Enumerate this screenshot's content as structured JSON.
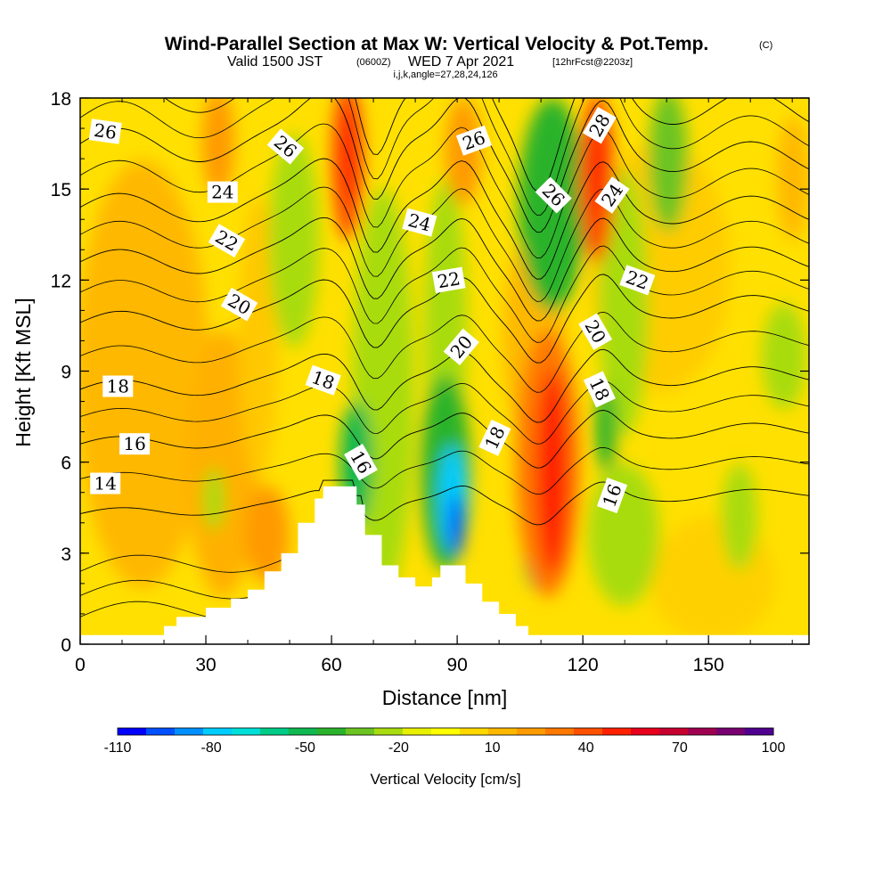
{
  "title": {
    "main": "Wind-Parallel Section at Max W: Vertical Velocity & Pot.Temp.",
    "main_mark": "(C)",
    "valid_prefix": "Valid 1500 JST",
    "valid_utc": "(0600Z)",
    "valid_date": "WED 7 Apr 2021",
    "forecast": "[12hrFcst@2203z]",
    "indices": "i,j,k,angle=27,28,24,126"
  },
  "chart_data": {
    "type": "heatmap",
    "xlabel": "Distance [nm]",
    "ylabel": "Height [Kft MSL]",
    "xlim": [
      0,
      174
    ],
    "ylim": [
      0,
      18
    ],
    "x_ticks": [
      "0",
      "30",
      "60",
      "90",
      "120",
      "150"
    ],
    "x_tick_values": [
      0,
      30,
      60,
      90,
      120,
      150
    ],
    "y_ticks": [
      "0",
      "3",
      "6",
      "9",
      "12",
      "15",
      "18"
    ],
    "y_tick_values": [
      0,
      3,
      6,
      9,
      12,
      15,
      18
    ],
    "grid": false,
    "terrain": [
      [
        0,
        0.3
      ],
      [
        18,
        0.3
      ],
      [
        20,
        0.6
      ],
      [
        23,
        0.9
      ],
      [
        30,
        1.2
      ],
      [
        36,
        1.5
      ],
      [
        40,
        1.8
      ],
      [
        44,
        2.4
      ],
      [
        48,
        3.0
      ],
      [
        52,
        4.0
      ],
      [
        56,
        4.8
      ],
      [
        58,
        5.2
      ],
      [
        64,
        5.2
      ],
      [
        66,
        4.6
      ],
      [
        68,
        3.6
      ],
      [
        72,
        2.6
      ],
      [
        76,
        2.2
      ],
      [
        80,
        1.9
      ],
      [
        84,
        2.2
      ],
      [
        86,
        2.6
      ],
      [
        90,
        2.6
      ],
      [
        92,
        2.0
      ],
      [
        96,
        1.4
      ],
      [
        100,
        1.0
      ],
      [
        104,
        0.6
      ],
      [
        107,
        0.3
      ],
      [
        174,
        0.3
      ]
    ],
    "colorbar": {
      "title": "Vertical Velocity [cm/s]",
      "tick_labels": [
        "-110",
        "-80",
        "-50",
        "-20",
        "10",
        "40",
        "70",
        "100"
      ],
      "tick_values": [
        -110,
        -80,
        -50,
        -20,
        10,
        40,
        70,
        100
      ],
      "colors": [
        "#0000ff",
        "#0050ff",
        "#0090ff",
        "#00ccff",
        "#00e0d8",
        "#00cc88",
        "#10b850",
        "#2ab32a",
        "#6cc420",
        "#a8dc10",
        "#e8f000",
        "#ffff00",
        "#ffd800",
        "#ffb800",
        "#ff9a00",
        "#ff7800",
        "#ff5000",
        "#ff2000",
        "#e8001c",
        "#c80030",
        "#a00050",
        "#780070",
        "#500090"
      ]
    },
    "isentropes": [
      {
        "label": "14",
        "y_left": 4.3,
        "y_right": 5.0
      },
      {
        "label": "16",
        "y_left": 6.6,
        "y_right": 7.1
      },
      {
        "label": "18",
        "y_left": 8.4,
        "y_right": 8.9
      },
      {
        "label": "20",
        "y_left": 10.6,
        "y_right": 11.2
      },
      {
        "label": "22",
        "y_left": 12.6,
        "y_right": 12.7
      },
      {
        "label": "24",
        "y_left": 14.4,
        "y_right": 14.3
      },
      {
        "label": "26",
        "y_left": 16.5,
        "y_right": 16.0
      },
      {
        "label": "28",
        "y_left": 18.2,
        "y_right": 17.6
      }
    ],
    "contour_labels": [
      {
        "text": "26",
        "x": 6,
        "y": 16.9,
        "angle": 8
      },
      {
        "text": "24",
        "x": 34,
        "y": 14.9,
        "angle": 0
      },
      {
        "text": "22",
        "x": 35,
        "y": 13.3,
        "angle": 30
      },
      {
        "text": "20",
        "x": 38,
        "y": 11.2,
        "angle": 30
      },
      {
        "text": "18",
        "x": 9,
        "y": 8.5,
        "angle": 0
      },
      {
        "text": "16",
        "x": 13,
        "y": 6.6,
        "angle": 0
      },
      {
        "text": "14",
        "x": 6,
        "y": 5.3,
        "angle": 0
      },
      {
        "text": "26",
        "x": 49,
        "y": 16.4,
        "angle": 40
      },
      {
        "text": "18",
        "x": 58,
        "y": 8.7,
        "angle": 20
      },
      {
        "text": "16",
        "x": 67,
        "y": 6.0,
        "angle": 60
      },
      {
        "text": "24",
        "x": 81,
        "y": 13.9,
        "angle": 15
      },
      {
        "text": "22",
        "x": 88,
        "y": 12.0,
        "angle": -10
      },
      {
        "text": "20",
        "x": 91,
        "y": 9.8,
        "angle": -50
      },
      {
        "text": "26",
        "x": 94,
        "y": 16.6,
        "angle": -20
      },
      {
        "text": "18",
        "x": 99,
        "y": 6.8,
        "angle": -65
      },
      {
        "text": "26",
        "x": 113,
        "y": 14.8,
        "angle": 45
      },
      {
        "text": "28",
        "x": 124,
        "y": 17.1,
        "angle": -60
      },
      {
        "text": "24",
        "x": 127,
        "y": 14.8,
        "angle": -55
      },
      {
        "text": "22",
        "x": 133,
        "y": 12.0,
        "angle": 20
      },
      {
        "text": "20",
        "x": 123,
        "y": 10.3,
        "angle": 60
      },
      {
        "text": "18",
        "x": 124,
        "y": 8.4,
        "angle": 65
      },
      {
        "text": "16",
        "x": 127,
        "y": 4.9,
        "angle": -70
      }
    ]
  }
}
